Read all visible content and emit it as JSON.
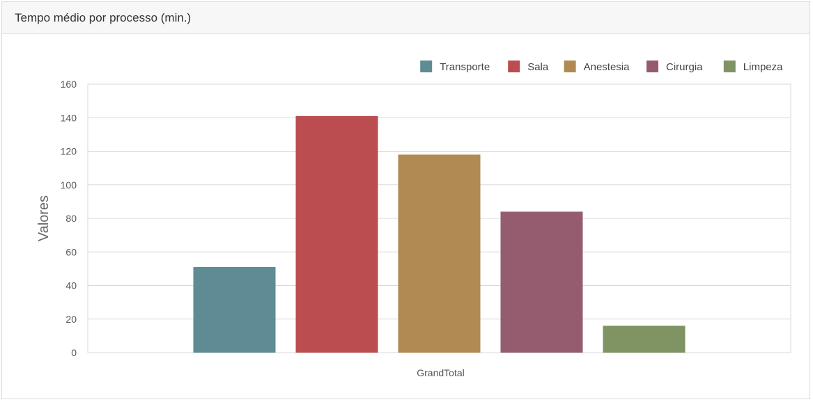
{
  "panel": {
    "title": "Tempo médio por processo (min.)"
  },
  "chart_data": {
    "type": "bar",
    "title": "",
    "xlabel": "GrandTotal",
    "ylabel": "Valores",
    "categories": [
      "GrandTotal"
    ],
    "ylim": [
      0,
      160
    ],
    "yticks": [
      0,
      20,
      40,
      60,
      80,
      100,
      120,
      140,
      160
    ],
    "grid": true,
    "legend_position": "top-right",
    "series": [
      {
        "name": "Transporte",
        "values": [
          51
        ],
        "color": "#5e8b94"
      },
      {
        "name": "Sala",
        "values": [
          141
        ],
        "color": "#bb4c50"
      },
      {
        "name": "Anestesia",
        "values": [
          118
        ],
        "color": "#b08a52"
      },
      {
        "name": "Cirurgia",
        "values": [
          84
        ],
        "color": "#955c6f"
      },
      {
        "name": "Limpeza",
        "values": [
          16
        ],
        "color": "#7f9462"
      }
    ]
  }
}
